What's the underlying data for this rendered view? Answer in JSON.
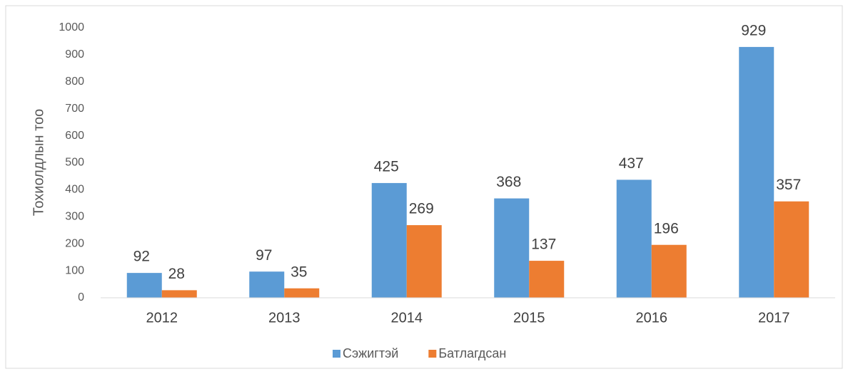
{
  "chart_data": {
    "type": "bar",
    "y_label": "Тохиолдлын тоо",
    "categories": [
      "2012",
      "2013",
      "2014",
      "2015",
      "2016",
      "2017"
    ],
    "series": [
      {
        "name": "Сэжигтэй",
        "color": "#5b9bd5",
        "values": [
          92,
          97,
          425,
          368,
          437,
          929
        ]
      },
      {
        "name": "Батлагдсан",
        "color": "#ed7d31",
        "values": [
          28,
          35,
          269,
          137,
          196,
          357
        ]
      }
    ],
    "ylim": [
      0,
      1000
    ],
    "yticks": [
      0,
      100,
      200,
      300,
      400,
      500,
      600,
      700,
      800,
      900,
      1000
    ],
    "grid": false,
    "legend": "bottom"
  }
}
